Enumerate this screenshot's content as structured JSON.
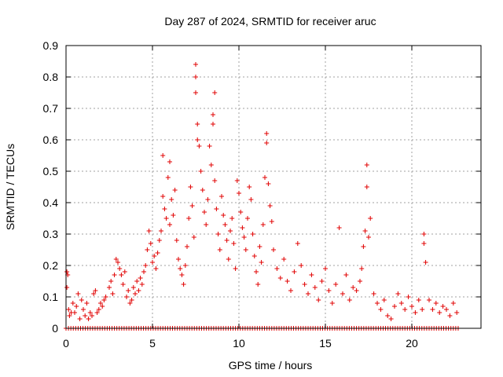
{
  "chart_data": {
    "type": "scatter",
    "title": "Day 287 of 2024, SRMTID for receiver aruc",
    "xlabel": "GPS time / hours",
    "ylabel": "SRMTID / TECUs",
    "xlim": [
      0,
      24
    ],
    "ylim": [
      0,
      0.9
    ],
    "xticks": [
      0,
      5,
      10,
      15,
      20
    ],
    "yticks": [
      0,
      0.1,
      0.2,
      0.3,
      0.4,
      0.5,
      0.6,
      0.7,
      0.8,
      0.9
    ],
    "xtick_labels": [
      "0",
      "5",
      "10",
      "15",
      "20"
    ],
    "ytick_labels": [
      "0",
      "0.1",
      "0.2",
      "0.3",
      "0.4",
      "0.5",
      "0.6",
      "0.7",
      "0.8",
      "0.9"
    ],
    "grid": true,
    "marker": "+",
    "series": [
      {
        "name": "SRMTID",
        "color": "#e00000",
        "points": [
          [
            0.05,
            0.18
          ],
          [
            0.05,
            0.13
          ],
          [
            0.1,
            0.17
          ],
          [
            0.15,
            0.06
          ],
          [
            0.2,
            0.04
          ],
          [
            0.3,
            0.05
          ],
          [
            0.4,
            0.08
          ],
          [
            0.5,
            0.05
          ],
          [
            0.6,
            0.07
          ],
          [
            0.7,
            0.11
          ],
          [
            0.8,
            0.03
          ],
          [
            0.9,
            0.09
          ],
          [
            1.0,
            0.06
          ],
          [
            1.1,
            0.04
          ],
          [
            1.2,
            0.08
          ],
          [
            1.3,
            0.03
          ],
          [
            1.4,
            0.05
          ],
          [
            1.5,
            0.04
          ],
          [
            1.6,
            0.11
          ],
          [
            1.7,
            0.12
          ],
          [
            1.8,
            0.05
          ],
          [
            1.9,
            0.06
          ],
          [
            2.0,
            0.08
          ],
          [
            2.1,
            0.07
          ],
          [
            2.2,
            0.09
          ],
          [
            2.3,
            0.1
          ],
          [
            2.5,
            0.13
          ],
          [
            2.6,
            0.15
          ],
          [
            2.7,
            0.11
          ],
          [
            2.8,
            0.17
          ],
          [
            2.9,
            0.22
          ],
          [
            3.0,
            0.21
          ],
          [
            3.1,
            0.19
          ],
          [
            3.2,
            0.17
          ],
          [
            3.3,
            0.14
          ],
          [
            3.4,
            0.18
          ],
          [
            3.5,
            0.1
          ],
          [
            3.6,
            0.12
          ],
          [
            3.7,
            0.08
          ],
          [
            3.8,
            0.09
          ],
          [
            3.9,
            0.13
          ],
          [
            4.0,
            0.11
          ],
          [
            4.1,
            0.15
          ],
          [
            4.2,
            0.12
          ],
          [
            4.3,
            0.16
          ],
          [
            4.4,
            0.14
          ],
          [
            4.5,
            0.18
          ],
          [
            4.6,
            0.2
          ],
          [
            4.7,
            0.25
          ],
          [
            4.8,
            0.31
          ],
          [
            4.9,
            0.27
          ],
          [
            5.0,
            0.21
          ],
          [
            5.1,
            0.23
          ],
          [
            5.2,
            0.19
          ],
          [
            5.3,
            0.24
          ],
          [
            5.4,
            0.28
          ],
          [
            5.5,
            0.31
          ],
          [
            5.6,
            0.42
          ],
          [
            5.6,
            0.55
          ],
          [
            5.7,
            0.38
          ],
          [
            5.8,
            0.35
          ],
          [
            5.9,
            0.48
          ],
          [
            6.0,
            0.33
          ],
          [
            6.0,
            0.53
          ],
          [
            6.1,
            0.41
          ],
          [
            6.2,
            0.36
          ],
          [
            6.3,
            0.44
          ],
          [
            6.4,
            0.28
          ],
          [
            6.5,
            0.22
          ],
          [
            6.6,
            0.19
          ],
          [
            6.7,
            0.17
          ],
          [
            6.8,
            0.14
          ],
          [
            6.9,
            0.2
          ],
          [
            7.0,
            0.26
          ],
          [
            7.1,
            0.35
          ],
          [
            7.2,
            0.45
          ],
          [
            7.3,
            0.39
          ],
          [
            7.4,
            0.29
          ],
          [
            7.5,
            0.84
          ],
          [
            7.5,
            0.8
          ],
          [
            7.5,
            0.75
          ],
          [
            7.6,
            0.65
          ],
          [
            7.6,
            0.6
          ],
          [
            7.7,
            0.58
          ],
          [
            7.8,
            0.5
          ],
          [
            7.9,
            0.44
          ],
          [
            8.0,
            0.37
          ],
          [
            8.1,
            0.33
          ],
          [
            8.2,
            0.41
          ],
          [
            8.3,
            0.58
          ],
          [
            8.4,
            0.52
          ],
          [
            8.5,
            0.68
          ],
          [
            8.5,
            0.65
          ],
          [
            8.6,
            0.75
          ],
          [
            8.6,
            0.47
          ],
          [
            8.7,
            0.38
          ],
          [
            8.8,
            0.3
          ],
          [
            8.9,
            0.25
          ],
          [
            9.0,
            0.42
          ],
          [
            9.1,
            0.36
          ],
          [
            9.2,
            0.33
          ],
          [
            9.3,
            0.28
          ],
          [
            9.4,
            0.22
          ],
          [
            9.5,
            0.31
          ],
          [
            9.6,
            0.35
          ],
          [
            9.7,
            0.27
          ],
          [
            9.8,
            0.19
          ],
          [
            9.9,
            0.47
          ],
          [
            10.0,
            0.43
          ],
          [
            10.1,
            0.37
          ],
          [
            10.2,
            0.32
          ],
          [
            10.3,
            0.29
          ],
          [
            10.4,
            0.25
          ],
          [
            10.5,
            0.35
          ],
          [
            10.6,
            0.45
          ],
          [
            10.7,
            0.41
          ],
          [
            10.8,
            0.3
          ],
          [
            10.9,
            0.23
          ],
          [
            11.0,
            0.18
          ],
          [
            11.1,
            0.14
          ],
          [
            11.2,
            0.26
          ],
          [
            11.3,
            0.21
          ],
          [
            11.4,
            0.33
          ],
          [
            11.5,
            0.48
          ],
          [
            11.6,
            0.62
          ],
          [
            11.6,
            0.59
          ],
          [
            11.7,
            0.46
          ],
          [
            11.8,
            0.39
          ],
          [
            11.9,
            0.34
          ],
          [
            12.0,
            0.25
          ],
          [
            12.2,
            0.19
          ],
          [
            12.4,
            0.16
          ],
          [
            12.6,
            0.22
          ],
          [
            12.8,
            0.15
          ],
          [
            13.0,
            0.12
          ],
          [
            13.2,
            0.18
          ],
          [
            13.4,
            0.27
          ],
          [
            13.6,
            0.2
          ],
          [
            13.8,
            0.14
          ],
          [
            14.0,
            0.11
          ],
          [
            14.2,
            0.17
          ],
          [
            14.4,
            0.13
          ],
          [
            14.6,
            0.09
          ],
          [
            14.8,
            0.15
          ],
          [
            15.0,
            0.19
          ],
          [
            15.2,
            0.12
          ],
          [
            15.4,
            0.08
          ],
          [
            15.6,
            0.14
          ],
          [
            15.8,
            0.32
          ],
          [
            16.0,
            0.11
          ],
          [
            16.2,
            0.17
          ],
          [
            16.4,
            0.09
          ],
          [
            16.6,
            0.13
          ],
          [
            16.8,
            0.12
          ],
          [
            17.0,
            0.15
          ],
          [
            17.1,
            0.19
          ],
          [
            17.2,
            0.26
          ],
          [
            17.3,
            0.31
          ],
          [
            17.4,
            0.52
          ],
          [
            17.4,
            0.45
          ],
          [
            17.5,
            0.29
          ],
          [
            17.6,
            0.35
          ],
          [
            17.8,
            0.11
          ],
          [
            18.0,
            0.08
          ],
          [
            18.2,
            0.06
          ],
          [
            18.4,
            0.09
          ],
          [
            18.6,
            0.04
          ],
          [
            18.8,
            0.03
          ],
          [
            19.0,
            0.07
          ],
          [
            19.2,
            0.11
          ],
          [
            19.4,
            0.08
          ],
          [
            19.6,
            0.06
          ],
          [
            19.8,
            0.1
          ],
          [
            20.0,
            0.07
          ],
          [
            20.2,
            0.05
          ],
          [
            20.4,
            0.09
          ],
          [
            20.6,
            0.06
          ],
          [
            20.7,
            0.3
          ],
          [
            20.7,
            0.27
          ],
          [
            20.8,
            0.21
          ],
          [
            21.0,
            0.09
          ],
          [
            21.2,
            0.06
          ],
          [
            21.4,
            0.08
          ],
          [
            21.6,
            0.05
          ],
          [
            21.8,
            0.07
          ],
          [
            22.0,
            0.06
          ],
          [
            22.2,
            0.04
          ],
          [
            22.4,
            0.08
          ],
          [
            22.6,
            0.05
          ]
        ]
      }
    ],
    "zero_band_range": [
      0,
      22.8
    ]
  }
}
